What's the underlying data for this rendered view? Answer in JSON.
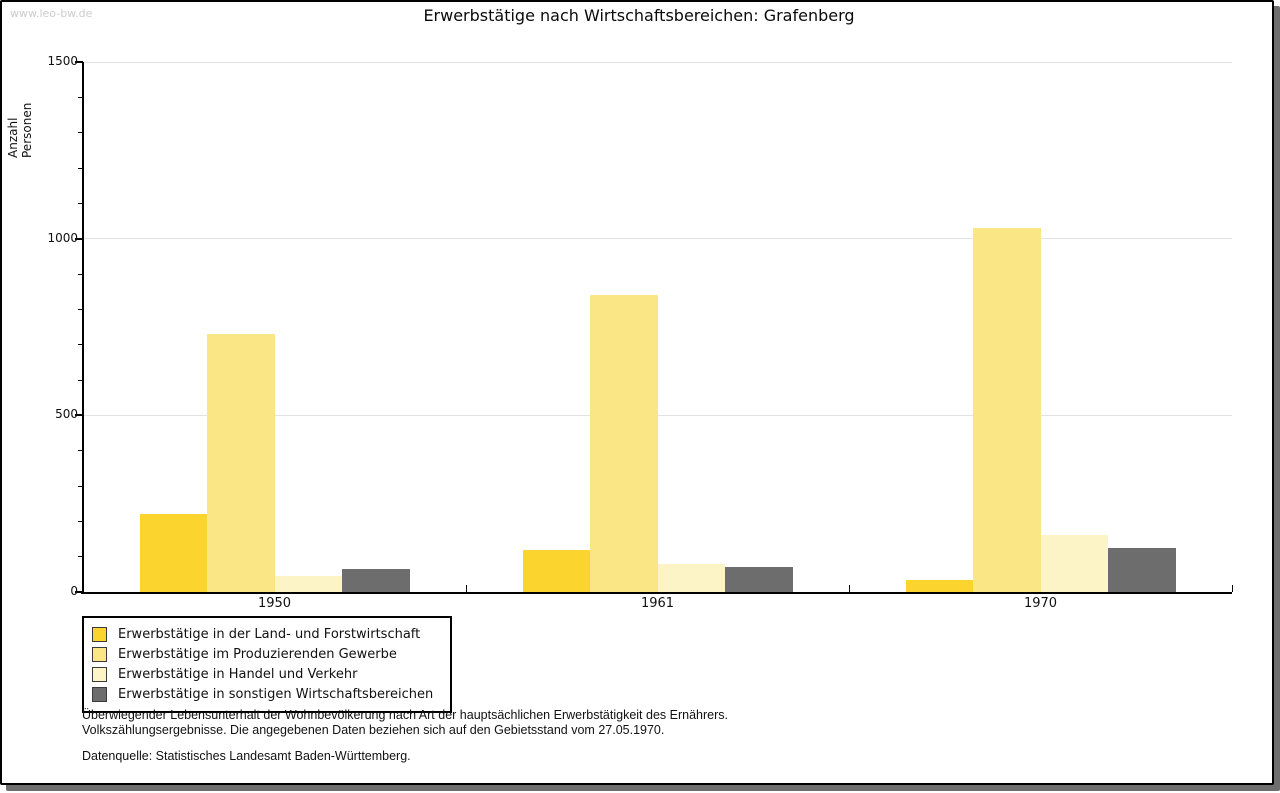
{
  "watermark": "www.leo-bw.de",
  "title": "Erwerbstätige nach Wirtschaftsbereichen: Grafenberg",
  "chart_data": {
    "type": "bar",
    "title": "Erwerbstätige nach Wirtschaftsbereichen: Grafenberg",
    "xlabel": "",
    "ylabel": "Anzahl Personen",
    "ylim": [
      0,
      1500
    ],
    "ytick_interval": 500,
    "yminor_tick_interval": 100,
    "ytick_labels": [
      "0",
      "500",
      "1000",
      "1500"
    ],
    "grid": true,
    "legend_position": "bottom-left",
    "categories": [
      "1950",
      "1961",
      "1970"
    ],
    "series": [
      {
        "name": "Erwerbstätige in der Land- und Forstwirtschaft",
        "color": "#fcd42e",
        "values": [
          220,
          120,
          35
        ]
      },
      {
        "name": "Erwerbstätige im Produzierenden Gewerbe",
        "color": "#fae685",
        "values": [
          730,
          840,
          1030
        ]
      },
      {
        "name": "Erwerbstätige in Handel und Verkehr",
        "color": "#fcf3c6",
        "values": [
          45,
          80,
          160
        ]
      },
      {
        "name": "Erwerbstätige in sonstigen Wirtschaftsbereichen",
        "color": "#6d6d6e",
        "values": [
          65,
          70,
          125
        ]
      }
    ]
  },
  "footnotes": {
    "line1": "Überwiegender Lebensunterhalt der Wohnbevölkerung nach Art der hauptsächlichen Erwerbstätigkeit des Ernährers.",
    "line2": "Volkszählungsergebnisse. Die angegebenen Daten beziehen sich auf den Gebietsstand vom 27.05.1970.",
    "source": "Datenquelle: Statistisches Landesamt Baden-Württemberg."
  },
  "colors": {
    "grid": "#e2e2e2",
    "axis": "#000000",
    "watermark": "#cccccc",
    "frame_shadow": "#6e6e6e",
    "text": "#111111"
  }
}
